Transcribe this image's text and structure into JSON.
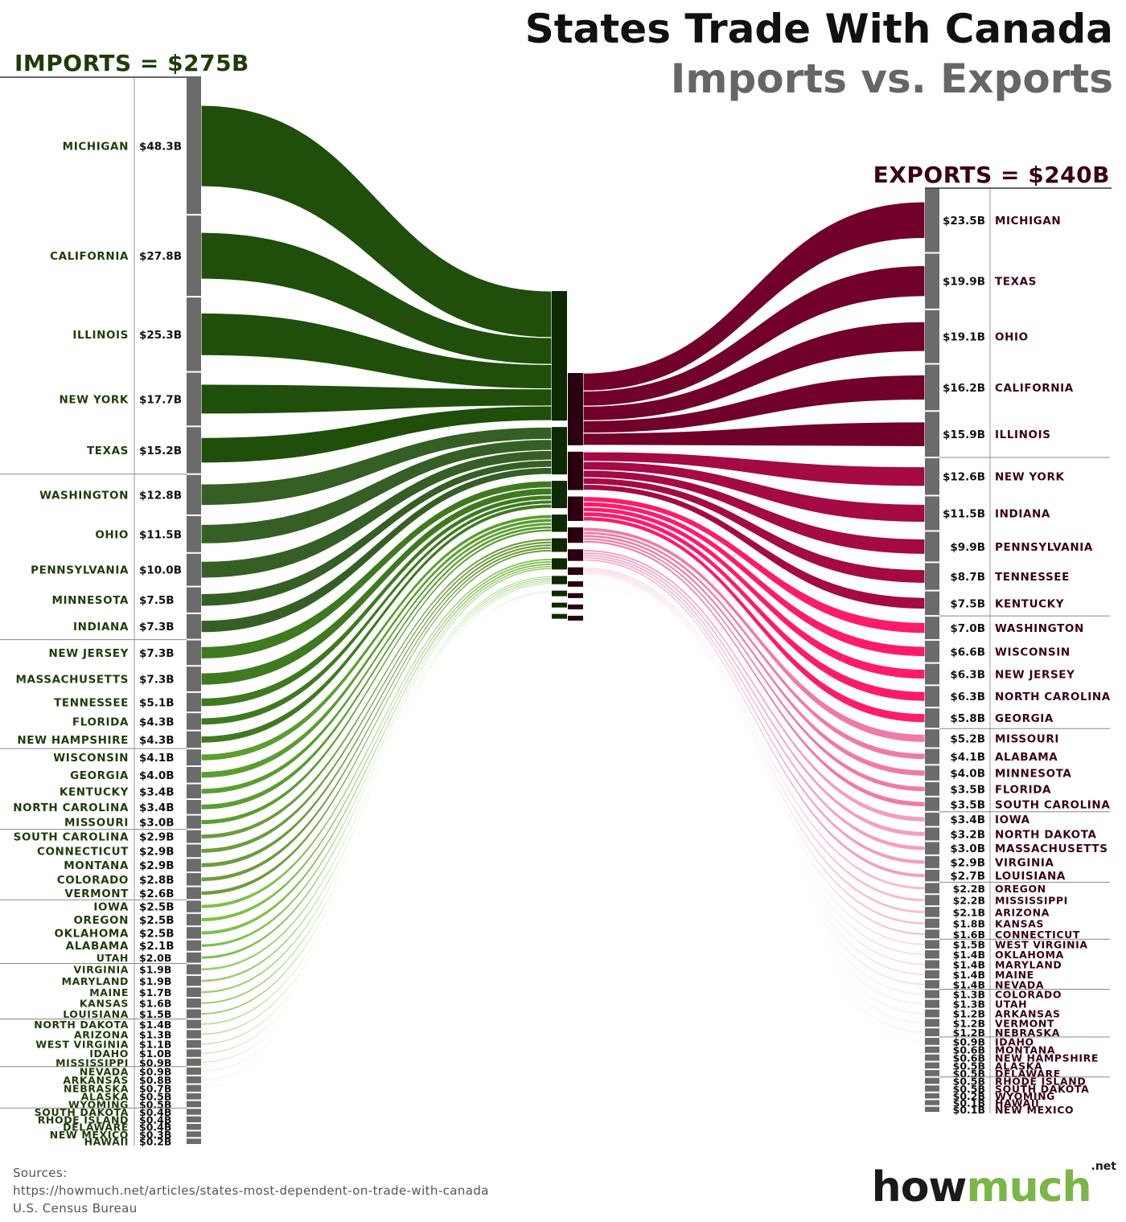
{
  "title": "States Trade With Canada",
  "subtitle": "Imports vs. Exports",
  "sources": {
    "heading": "Sources:",
    "lines": [
      "https://howmuch.net/articles/states-most-dependent-on-trade-with-canada",
      "U.S. Census Bureau"
    ]
  },
  "logo": {
    "how": "how",
    "much": "much",
    "net": ".net"
  },
  "colors": {
    "imports_groups": [
      "#1f4f0b",
      "#355f24",
      "#3f7a20",
      "#5a9e30",
      "#6c9c3c",
      "#7ec04a",
      "#9ccf6f",
      "#b9dc97",
      "#d8ebc5"
    ],
    "exports_groups": [
      "#71002a",
      "#a50a45",
      "#ff1a6b",
      "#f07aa6",
      "#f59dc0",
      "#f8b9d2",
      "#fbd3e3",
      "#fde3ee",
      "#ffeef5"
    ],
    "imports_text": "#1f3c08",
    "exports_text": "#3a0012"
  },
  "chart_data": {
    "type": "sankey",
    "units": "billion USD",
    "imports": {
      "label": "IMPORTS = $275B",
      "total": 275,
      "groups": [
        [
          {
            "state": "MICHIGAN",
            "value": 48.3,
            "label": "$48.3B"
          },
          {
            "state": "CALIFORNIA",
            "value": 27.8,
            "label": "$27.8B"
          },
          {
            "state": "ILLINOIS",
            "value": 25.3,
            "label": "$25.3B"
          },
          {
            "state": "NEW YORK",
            "value": 17.7,
            "label": "$17.7B"
          },
          {
            "state": "TEXAS",
            "value": 15.2,
            "label": "$15.2B"
          }
        ],
        [
          {
            "state": "WASHINGTON",
            "value": 12.8,
            "label": "$12.8B"
          },
          {
            "state": "OHIO",
            "value": 11.5,
            "label": "$11.5B"
          },
          {
            "state": "PENNSYLVANIA",
            "value": 10.0,
            "label": "$10.0B"
          },
          {
            "state": "MINNESOTA",
            "value": 7.5,
            "label": "$7.5B"
          },
          {
            "state": "INDIANA",
            "value": 7.3,
            "label": "$7.3B"
          }
        ],
        [
          {
            "state": "NEW JERSEY",
            "value": 7.3,
            "label": "$7.3B"
          },
          {
            "state": "MASSACHUSETTS",
            "value": 7.3,
            "label": "$7.3B"
          },
          {
            "state": "TENNESSEE",
            "value": 5.1,
            "label": "$5.1B"
          },
          {
            "state": "FLORIDA",
            "value": 4.3,
            "label": "$4.3B"
          },
          {
            "state": "NEW HAMPSHIRE",
            "value": 4.3,
            "label": "$4.3B"
          }
        ],
        [
          {
            "state": "WISCONSIN",
            "value": 4.1,
            "label": "$4.1B"
          },
          {
            "state": "GEORGIA",
            "value": 4.0,
            "label": "$4.0B"
          },
          {
            "state": "KENTUCKY",
            "value": 3.4,
            "label": "$3.4B"
          },
          {
            "state": "NORTH CAROLINA",
            "value": 3.4,
            "label": "$3.4B"
          },
          {
            "state": "MISSOURI",
            "value": 3.0,
            "label": "$3.0B"
          }
        ],
        [
          {
            "state": "SOUTH CAROLINA",
            "value": 2.9,
            "label": "$2.9B"
          },
          {
            "state": "CONNECTICUT",
            "value": 2.9,
            "label": "$2.9B"
          },
          {
            "state": "MONTANA",
            "value": 2.9,
            "label": "$2.9B"
          },
          {
            "state": "COLORADO",
            "value": 2.8,
            "label": "$2.8B"
          },
          {
            "state": "VERMONT",
            "value": 2.6,
            "label": "$2.6B"
          }
        ],
        [
          {
            "state": "IOWA",
            "value": 2.5,
            "label": "$2.5B"
          },
          {
            "state": "OREGON",
            "value": 2.5,
            "label": "$2.5B"
          },
          {
            "state": "OKLAHOMA",
            "value": 2.5,
            "label": "$2.5B"
          },
          {
            "state": "ALABAMA",
            "value": 2.1,
            "label": "$2.1B"
          },
          {
            "state": "UTAH",
            "value": 2.0,
            "label": "$2.0B"
          }
        ],
        [
          {
            "state": "VIRGINIA",
            "value": 1.9,
            "label": "$1.9B"
          },
          {
            "state": "MARYLAND",
            "value": 1.9,
            "label": "$1.9B"
          },
          {
            "state": "MAINE",
            "value": 1.7,
            "label": "$1.7B"
          },
          {
            "state": "KANSAS",
            "value": 1.6,
            "label": "$1.6B"
          },
          {
            "state": "LOUISIANA",
            "value": 1.5,
            "label": "$1.5B"
          }
        ],
        [
          {
            "state": "NORTH DAKOTA",
            "value": 1.4,
            "label": "$1.4B"
          },
          {
            "state": "ARIZONA",
            "value": 1.3,
            "label": "$1.3B"
          },
          {
            "state": "WEST VIRGINIA",
            "value": 1.1,
            "label": "$1.1B"
          },
          {
            "state": "IDAHO",
            "value": 1.0,
            "label": "$1.0B"
          },
          {
            "state": "MISSISSIPPI",
            "value": 0.9,
            "label": "$0.9B"
          }
        ],
        [
          {
            "state": "NEVADA",
            "value": 0.9,
            "label": "$0.9B"
          },
          {
            "state": "ARKANSAS",
            "value": 0.8,
            "label": "$0.8B"
          },
          {
            "state": "NEBRASKA",
            "value": 0.7,
            "label": "$0.7B"
          },
          {
            "state": "ALASKA",
            "value": 0.5,
            "label": "$0.5B"
          },
          {
            "state": "WYOMING",
            "value": 0.5,
            "label": "$0.5B"
          }
        ],
        [
          {
            "state": "SOUTH DAKOTA",
            "value": 0.4,
            "label": "$0.4B"
          },
          {
            "state": "RHODE ISLAND",
            "value": 0.4,
            "label": "$0.4B"
          },
          {
            "state": "DELAWARE",
            "value": 0.4,
            "label": "$0.4B"
          },
          {
            "state": "NEW MEXICO",
            "value": 0.3,
            "label": "$0.3B"
          },
          {
            "state": "HAWAII",
            "value": 0.2,
            "label": "$0.2B"
          }
        ]
      ]
    },
    "exports": {
      "label": "EXPORTS = $240B",
      "total": 240,
      "groups": [
        [
          {
            "state": "MICHIGAN",
            "value": 23.5,
            "label": "$23.5B"
          },
          {
            "state": "TEXAS",
            "value": 19.9,
            "label": "$19.9B"
          },
          {
            "state": "OHIO",
            "value": 19.1,
            "label": "$19.1B"
          },
          {
            "state": "CALIFORNIA",
            "value": 16.2,
            "label": "$16.2B"
          },
          {
            "state": "ILLINOIS",
            "value": 15.9,
            "label": "$15.9B"
          }
        ],
        [
          {
            "state": "NEW YORK",
            "value": 12.6,
            "label": "$12.6B"
          },
          {
            "state": "INDIANA",
            "value": 11.5,
            "label": "$11.5B"
          },
          {
            "state": "PENNSYLVANIA",
            "value": 9.9,
            "label": "$9.9B"
          },
          {
            "state": "TENNESSEE",
            "value": 8.7,
            "label": "$8.7B"
          },
          {
            "state": "KENTUCKY",
            "value": 7.5,
            "label": "$7.5B"
          }
        ],
        [
          {
            "state": "WASHINGTON",
            "value": 7.0,
            "label": "$7.0B"
          },
          {
            "state": "WISCONSIN",
            "value": 6.6,
            "label": "$6.6B"
          },
          {
            "state": "NEW JERSEY",
            "value": 6.3,
            "label": "$6.3B"
          },
          {
            "state": "NORTH CAROLINA",
            "value": 6.3,
            "label": "$6.3B"
          },
          {
            "state": "GEORGIA",
            "value": 5.8,
            "label": "$5.8B"
          }
        ],
        [
          {
            "state": "MISSOURI",
            "value": 5.2,
            "label": "$5.2B"
          },
          {
            "state": "ALABAMA",
            "value": 4.1,
            "label": "$4.1B"
          },
          {
            "state": "MINNESOTA",
            "value": 4.0,
            "label": "$4.0B"
          },
          {
            "state": "FLORIDA",
            "value": 3.5,
            "label": "$3.5B"
          },
          {
            "state": "SOUTH CAROLINA",
            "value": 3.5,
            "label": "$3.5B"
          }
        ],
        [
          {
            "state": "IOWA",
            "value": 3.4,
            "label": "$3.4B"
          },
          {
            "state": "NORTH DAKOTA",
            "value": 3.2,
            "label": "$3.2B"
          },
          {
            "state": "MASSACHUSETTS",
            "value": 3.0,
            "label": "$3.0B"
          },
          {
            "state": "VIRGINIA",
            "value": 2.9,
            "label": "$2.9B"
          },
          {
            "state": "LOUISIANA",
            "value": 2.7,
            "label": "$2.7B"
          }
        ],
        [
          {
            "state": "OREGON",
            "value": 2.2,
            "label": "$2.2B"
          },
          {
            "state": "MISSISSIPPI",
            "value": 2.2,
            "label": "$2.2B"
          },
          {
            "state": "ARIZONA",
            "value": 2.1,
            "label": "$2.1B"
          },
          {
            "state": "KANSAS",
            "value": 1.8,
            "label": "$1.8B"
          },
          {
            "state": "CONNECTICUT",
            "value": 1.6,
            "label": "$1.6B"
          }
        ],
        [
          {
            "state": "WEST VIRGINIA",
            "value": 1.5,
            "label": "$1.5B"
          },
          {
            "state": "OKLAHOMA",
            "value": 1.4,
            "label": "$1.4B"
          },
          {
            "state": "MARYLAND",
            "value": 1.4,
            "label": "$1.4B"
          },
          {
            "state": "MAINE",
            "value": 1.4,
            "label": "$1.4B"
          },
          {
            "state": "NEVADA",
            "value": 1.4,
            "label": "$1.4B"
          }
        ],
        [
          {
            "state": "COLORADO",
            "value": 1.3,
            "label": "$1.3B"
          },
          {
            "state": "UTAH",
            "value": 1.3,
            "label": "$1.3B"
          },
          {
            "state": "ARKANSAS",
            "value": 1.2,
            "label": "$1.2B"
          },
          {
            "state": "VERMONT",
            "value": 1.2,
            "label": "$1.2B"
          },
          {
            "state": "NEBRASKA",
            "value": 1.2,
            "label": "$1.2B"
          }
        ],
        [
          {
            "state": "IDAHO",
            "value": 0.9,
            "label": "$0.9B"
          },
          {
            "state": "MONTANA",
            "value": 0.6,
            "label": "$0.6B"
          },
          {
            "state": "NEW HAMPSHIRE",
            "value": 0.6,
            "label": "$0.6B"
          },
          {
            "state": "ALASKA",
            "value": 0.5,
            "label": "$0.5B"
          },
          {
            "state": "DELAWARE",
            "value": 0.5,
            "label": "$0.5B"
          }
        ],
        [
          {
            "state": "RHODE ISLAND",
            "value": 0.5,
            "label": "$0.5B"
          },
          {
            "state": "SOUTH DAKOTA",
            "value": 0.5,
            "label": "$0.5B"
          },
          {
            "state": "WYOMING",
            "value": 0.2,
            "label": "$0.2B"
          },
          {
            "state": "HAWAII",
            "value": 0.1,
            "label": "$0.1B"
          },
          {
            "state": "NEW MEXICO",
            "value": 0.1,
            "label": "$0.1B"
          }
        ]
      ]
    }
  }
}
